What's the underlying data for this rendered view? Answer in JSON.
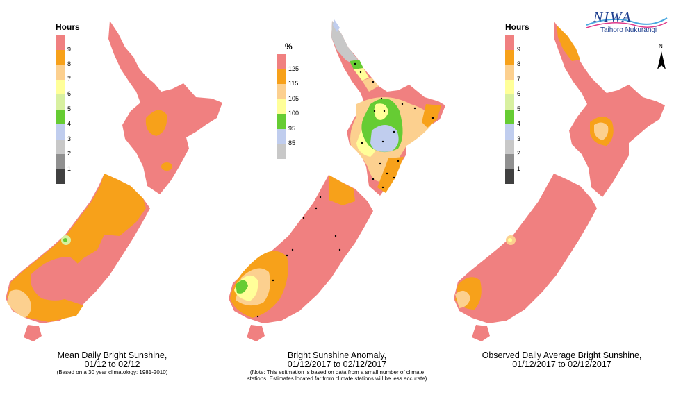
{
  "logo": {
    "name": "NIWA",
    "subtitle": "Taihoro Nukurangi"
  },
  "north_arrow": {
    "label": "N"
  },
  "colors": {
    "red": "#f08080",
    "orange": "#f7a11a",
    "light_orange": "#fcd08f",
    "yellow": "#ffff99",
    "light_green": "#d8f0a0",
    "green": "#66cc33",
    "blue": "#c0cdee",
    "light_gray": "#c8c8c8",
    "gray": "#909090",
    "dark_gray": "#404040"
  },
  "panels": [
    {
      "legend": {
        "title": "Hours",
        "ticks": [
          "9",
          "8",
          "7",
          "6",
          "5",
          "4",
          "3",
          "2",
          "1"
        ],
        "colors": [
          "#f08080",
          "#f7a11a",
          "#fcd08f",
          "#ffff99",
          "#d8f0a0",
          "#66cc33",
          "#c0cdee",
          "#c8c8c8",
          "#909090",
          "#404040"
        ]
      },
      "caption": {
        "line1": "Mean Daily Bright Sunshine,",
        "line2": "01/12 to 02/12",
        "note1": "(Based on a 30 year climatology: 1981-2010)",
        "note2": ""
      }
    },
    {
      "legend": {
        "title": "%",
        "ticks": [
          "125",
          "115",
          "105",
          "100",
          "95",
          "85"
        ],
        "colors": [
          "#f08080",
          "#f7a11a",
          "#fcd08f",
          "#ffff99",
          "#66cc33",
          "#c0cdee",
          "#c8c8c8"
        ]
      },
      "caption": {
        "line1": "Bright Sunshine Anomaly,",
        "line2": "01/12/2017 to 02/12/2017",
        "note1": "(Note: This esitmation is based on data from a small number of climate",
        "note2": "stations. Estimates located far from climate stations will be less accurate)"
      }
    },
    {
      "legend": {
        "title": "Hours",
        "ticks": [
          "9",
          "8",
          "7",
          "6",
          "5",
          "4",
          "3",
          "2",
          "1"
        ],
        "colors": [
          "#f08080",
          "#f7a11a",
          "#fcd08f",
          "#ffff99",
          "#d8f0a0",
          "#66cc33",
          "#c0cdee",
          "#c8c8c8",
          "#909090",
          "#404040"
        ]
      },
      "caption": {
        "line1": "Observed Daily Average Bright Sunshine,",
        "line2": "01/12/2017 to 02/12/2017",
        "note1": "",
        "note2": ""
      }
    }
  ]
}
